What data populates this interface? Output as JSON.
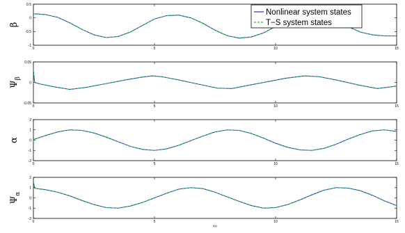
{
  "chart_data": [
    {
      "type": "line",
      "ylabel": "β",
      "xlabel": "",
      "xlim": [
        0,
        15
      ],
      "ylim": [
        -1,
        0.5
      ],
      "yticks": [
        "0.5",
        "0",
        "-0.5",
        "-1"
      ],
      "xticks": [
        "0",
        "5",
        "10",
        "15"
      ],
      "grid": false,
      "legend": "top-right",
      "series": [
        {
          "name": "Nonlinear system states",
          "color": "#2b2bd6",
          "x": [
            0,
            0.5,
            1,
            1.5,
            2,
            2.5,
            3,
            3.5,
            4,
            4.5,
            5,
            5.5,
            6,
            6.5,
            7,
            7.5,
            8,
            8.5,
            9,
            9.5,
            10,
            10.5,
            11,
            11.5,
            12,
            12.5,
            13,
            13.5,
            14,
            14.5,
            15
          ],
          "y": [
            0.15,
            0.12,
            0.02,
            -0.18,
            -0.42,
            -0.62,
            -0.72,
            -0.68,
            -0.52,
            -0.28,
            -0.04,
            0.08,
            0.1,
            0.0,
            -0.2,
            -0.45,
            -0.65,
            -0.74,
            -0.7,
            -0.55,
            -0.32,
            -0.08,
            0.08,
            0.12,
            0.05,
            -0.12,
            -0.32,
            -0.52,
            -0.62,
            -0.66,
            -0.66
          ]
        },
        {
          "name": "T−S system states",
          "color": "#22c23a",
          "x": [
            0,
            0.5,
            1,
            1.5,
            2,
            2.5,
            3,
            3.5,
            4,
            4.5,
            5,
            5.5,
            6,
            6.5,
            7,
            7.5,
            8,
            8.5,
            9,
            9.5,
            10,
            10.5,
            11,
            11.5,
            12,
            12.5,
            13,
            13.5,
            14,
            14.5,
            15
          ],
          "y": [
            0.15,
            0.12,
            0.02,
            -0.18,
            -0.42,
            -0.62,
            -0.72,
            -0.68,
            -0.52,
            -0.28,
            -0.04,
            0.08,
            0.1,
            0.0,
            -0.2,
            -0.45,
            -0.65,
            -0.74,
            -0.7,
            -0.55,
            -0.32,
            -0.08,
            0.08,
            0.12,
            0.05,
            -0.12,
            -0.32,
            -0.52,
            -0.62,
            -0.66,
            -0.66
          ]
        }
      ]
    },
    {
      "type": "line",
      "ylabel": "Ψ",
      "ylabel_sub": "β",
      "xlabel": "",
      "xlim": [
        0,
        15
      ],
      "ylim": [
        -0.05,
        0.05
      ],
      "yticks": [
        "0.05",
        "0",
        "-0.05"
      ],
      "xticks": [
        "0",
        "5",
        "10",
        "15"
      ],
      "grid": false,
      "series": [
        {
          "name": "",
          "color": "#2b2bd6",
          "x": [
            0,
            0.05,
            0.1,
            0.3,
            0.8,
            1.5,
            2.2,
            3.0,
            3.8,
            4.5,
            4.9,
            5.3,
            6.0,
            6.8,
            7.6,
            8.2,
            8.8,
            9.6,
            10.4,
            11.2,
            11.8,
            12.5,
            13.4,
            14.2,
            15
          ],
          "y": [
            0.03,
            0.0,
            -0.001,
            -0.004,
            -0.01,
            -0.017,
            -0.012,
            -0.003,
            0.006,
            0.013,
            0.016,
            0.014,
            0.006,
            -0.004,
            -0.014,
            -0.015,
            -0.008,
            0.001,
            0.01,
            0.016,
            0.014,
            0.006,
            -0.006,
            -0.015,
            -0.009
          ]
        },
        {
          "name": "",
          "color": "#22c23a",
          "x": [
            0,
            0.05,
            0.1,
            0.3,
            0.8,
            1.5,
            2.2,
            3.0,
            3.8,
            4.5,
            4.9,
            5.3,
            6.0,
            6.8,
            7.6,
            8.2,
            8.8,
            9.6,
            10.4,
            11.2,
            11.8,
            12.5,
            13.4,
            14.2,
            15
          ],
          "y": [
            0.03,
            0.0,
            -0.001,
            -0.004,
            -0.01,
            -0.017,
            -0.012,
            -0.003,
            0.006,
            0.013,
            0.016,
            0.014,
            0.006,
            -0.004,
            -0.014,
            -0.015,
            -0.008,
            0.001,
            0.01,
            0.016,
            0.014,
            0.006,
            -0.006,
            -0.015,
            -0.009
          ]
        }
      ]
    },
    {
      "type": "line",
      "ylabel": "α",
      "xlabel": "",
      "xlim": [
        0,
        15
      ],
      "ylim": [
        -2,
        2
      ],
      "yticks": [
        "2",
        "1",
        "0",
        "-1",
        "-2"
      ],
      "xticks": [
        "0",
        "5",
        "10",
        "15"
      ],
      "grid": false,
      "series": [
        {
          "name": "",
          "color": "#2b2bd6",
          "x": [
            0,
            0.5,
            1,
            1.5,
            2,
            2.5,
            3,
            3.5,
            4,
            4.5,
            5,
            5.5,
            6,
            6.5,
            7,
            7.5,
            8,
            8.5,
            9,
            9.5,
            10,
            10.5,
            11,
            11.5,
            12,
            12.5,
            13,
            13.5,
            14,
            14.5,
            15
          ],
          "y": [
            0.05,
            0.45,
            0.8,
            1.0,
            0.95,
            0.7,
            0.3,
            -0.15,
            -0.6,
            -0.9,
            -1.0,
            -0.85,
            -0.5,
            -0.05,
            0.4,
            0.8,
            1.0,
            0.95,
            0.65,
            0.2,
            -0.3,
            -0.7,
            -0.95,
            -1.0,
            -0.8,
            -0.4,
            0.1,
            0.55,
            0.9,
            1.0,
            0.85
          ]
        },
        {
          "name": "",
          "color": "#22c23a",
          "x": [
            0,
            0.5,
            1,
            1.5,
            2,
            2.5,
            3,
            3.5,
            4,
            4.5,
            5,
            5.5,
            6,
            6.5,
            7,
            7.5,
            8,
            8.5,
            9,
            9.5,
            10,
            10.5,
            11,
            11.5,
            12,
            12.5,
            13,
            13.5,
            14,
            14.5,
            15
          ],
          "y": [
            0.05,
            0.45,
            0.8,
            1.0,
            0.95,
            0.7,
            0.3,
            -0.15,
            -0.6,
            -0.9,
            -1.0,
            -0.85,
            -0.5,
            -0.05,
            0.4,
            0.8,
            1.0,
            0.95,
            0.65,
            0.2,
            -0.3,
            -0.7,
            -0.95,
            -1.0,
            -0.8,
            -0.4,
            0.1,
            0.55,
            0.9,
            1.0,
            0.85
          ]
        }
      ]
    },
    {
      "type": "line",
      "ylabel": "Ψ",
      "ylabel_sub": "α",
      "xlabel": "t(s)",
      "xlim": [
        0,
        15
      ],
      "ylim": [
        -2,
        2
      ],
      "yticks": [
        "2",
        "1",
        "0",
        "-1",
        "-2"
      ],
      "xticks": [
        "0",
        "5",
        "10",
        "15"
      ],
      "grid": false,
      "series": [
        {
          "name": "",
          "color": "#2b2bd6",
          "x": [
            0,
            0.05,
            0.15,
            0.5,
            1,
            1.5,
            2,
            2.5,
            3,
            3.5,
            4,
            4.5,
            5,
            5.5,
            6,
            6.5,
            7,
            7.5,
            8,
            8.5,
            9,
            9.5,
            10,
            10.5,
            11,
            11.5,
            12,
            12.5,
            13,
            13.5,
            14,
            14.5,
            15
          ],
          "y": [
            1.6,
            0.95,
            0.9,
            0.8,
            0.55,
            0.2,
            -0.25,
            -0.65,
            -0.95,
            -1.0,
            -0.8,
            -0.45,
            0.0,
            0.45,
            0.85,
            1.0,
            0.9,
            0.55,
            0.1,
            -0.35,
            -0.75,
            -1.0,
            -0.95,
            -0.65,
            -0.2,
            0.3,
            0.75,
            1.0,
            0.95,
            0.7,
            0.25,
            -0.3,
            -0.75
          ]
        },
        {
          "name": "",
          "color": "#22c23a",
          "x": [
            0,
            0.05,
            0.15,
            0.5,
            1,
            1.5,
            2,
            2.5,
            3,
            3.5,
            4,
            4.5,
            5,
            5.5,
            6,
            6.5,
            7,
            7.5,
            8,
            8.5,
            9,
            9.5,
            10,
            10.5,
            11,
            11.5,
            12,
            12.5,
            13,
            13.5,
            14,
            14.5,
            15
          ],
          "y": [
            1.6,
            0.95,
            0.9,
            0.8,
            0.55,
            0.2,
            -0.25,
            -0.65,
            -0.95,
            -1.0,
            -0.8,
            -0.45,
            0.0,
            0.45,
            0.85,
            1.0,
            0.9,
            0.55,
            0.1,
            -0.35,
            -0.75,
            -1.0,
            -0.95,
            -0.65,
            -0.2,
            0.3,
            0.75,
            1.0,
            0.95,
            0.7,
            0.25,
            -0.3,
            -0.75
          ]
        }
      ]
    }
  ]
}
